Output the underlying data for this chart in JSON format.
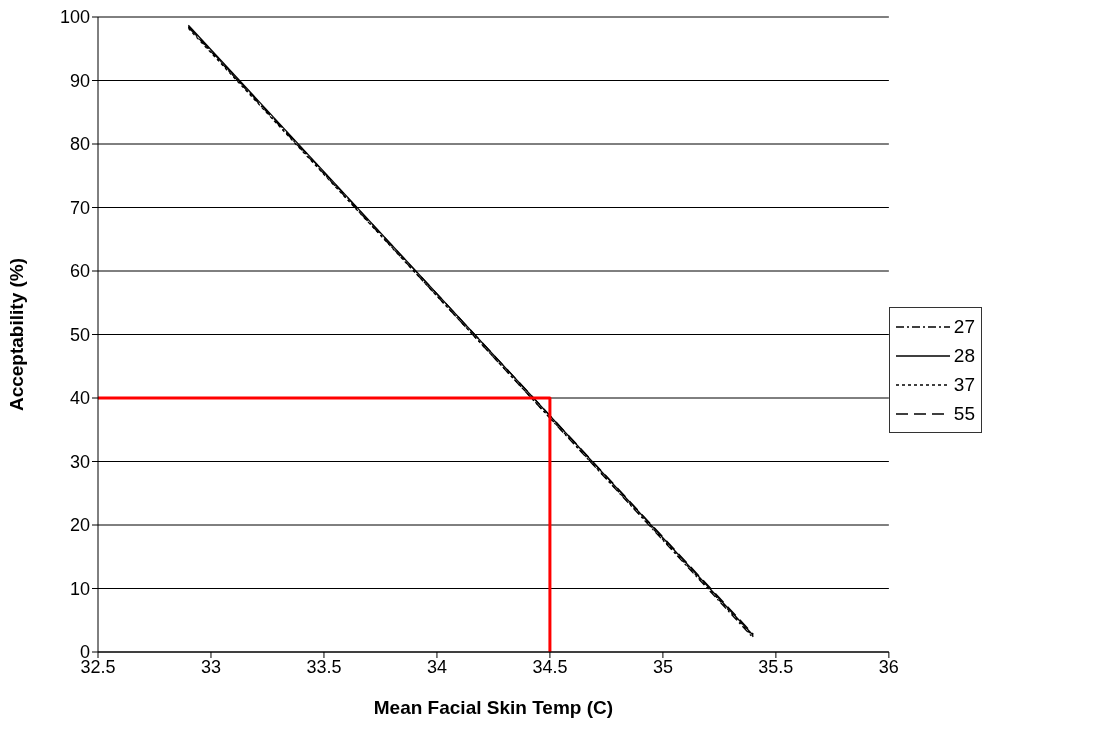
{
  "chart_data": {
    "type": "line",
    "xlabel": "Mean Facial Skin Temp (C)",
    "ylabel": "Acceptability (%)",
    "xlim": [
      32.5,
      36
    ],
    "xticks": [
      32.5,
      33,
      33.5,
      34,
      34.5,
      35,
      35.5,
      36
    ],
    "ylim": [
      0,
      100
    ],
    "yticks": [
      0,
      10,
      20,
      30,
      40,
      50,
      60,
      70,
      80,
      90,
      100
    ],
    "grid": "y",
    "legend": "right",
    "marker": "none",
    "series": [
      {
        "name": "27",
        "color": "#000000",
        "line_style": "dashdot",
        "x": [
          32.9,
          35.4
        ],
        "values": [
          98.4,
          2.2
        ]
      },
      {
        "name": "28",
        "color": "#000000",
        "line_style": "solid",
        "x": [
          32.9,
          35.4
        ],
        "values": [
          98.7,
          2.6
        ]
      },
      {
        "name": "37",
        "color": "#000000",
        "line_style": "dotted",
        "x": [
          32.9,
          35.4
        ],
        "values": [
          98.2,
          2.4
        ]
      },
      {
        "name": "55",
        "color": "#000000",
        "line_style": "dashed",
        "x": [
          32.9,
          35.4
        ],
        "values": [
          98.5,
          2.8
        ]
      },
      {
        "color": "#ff0000",
        "line_style": "solid",
        "x": [
          32.5,
          34.5,
          34.5
        ],
        "values": [
          40,
          40,
          0
        ]
      }
    ]
  }
}
